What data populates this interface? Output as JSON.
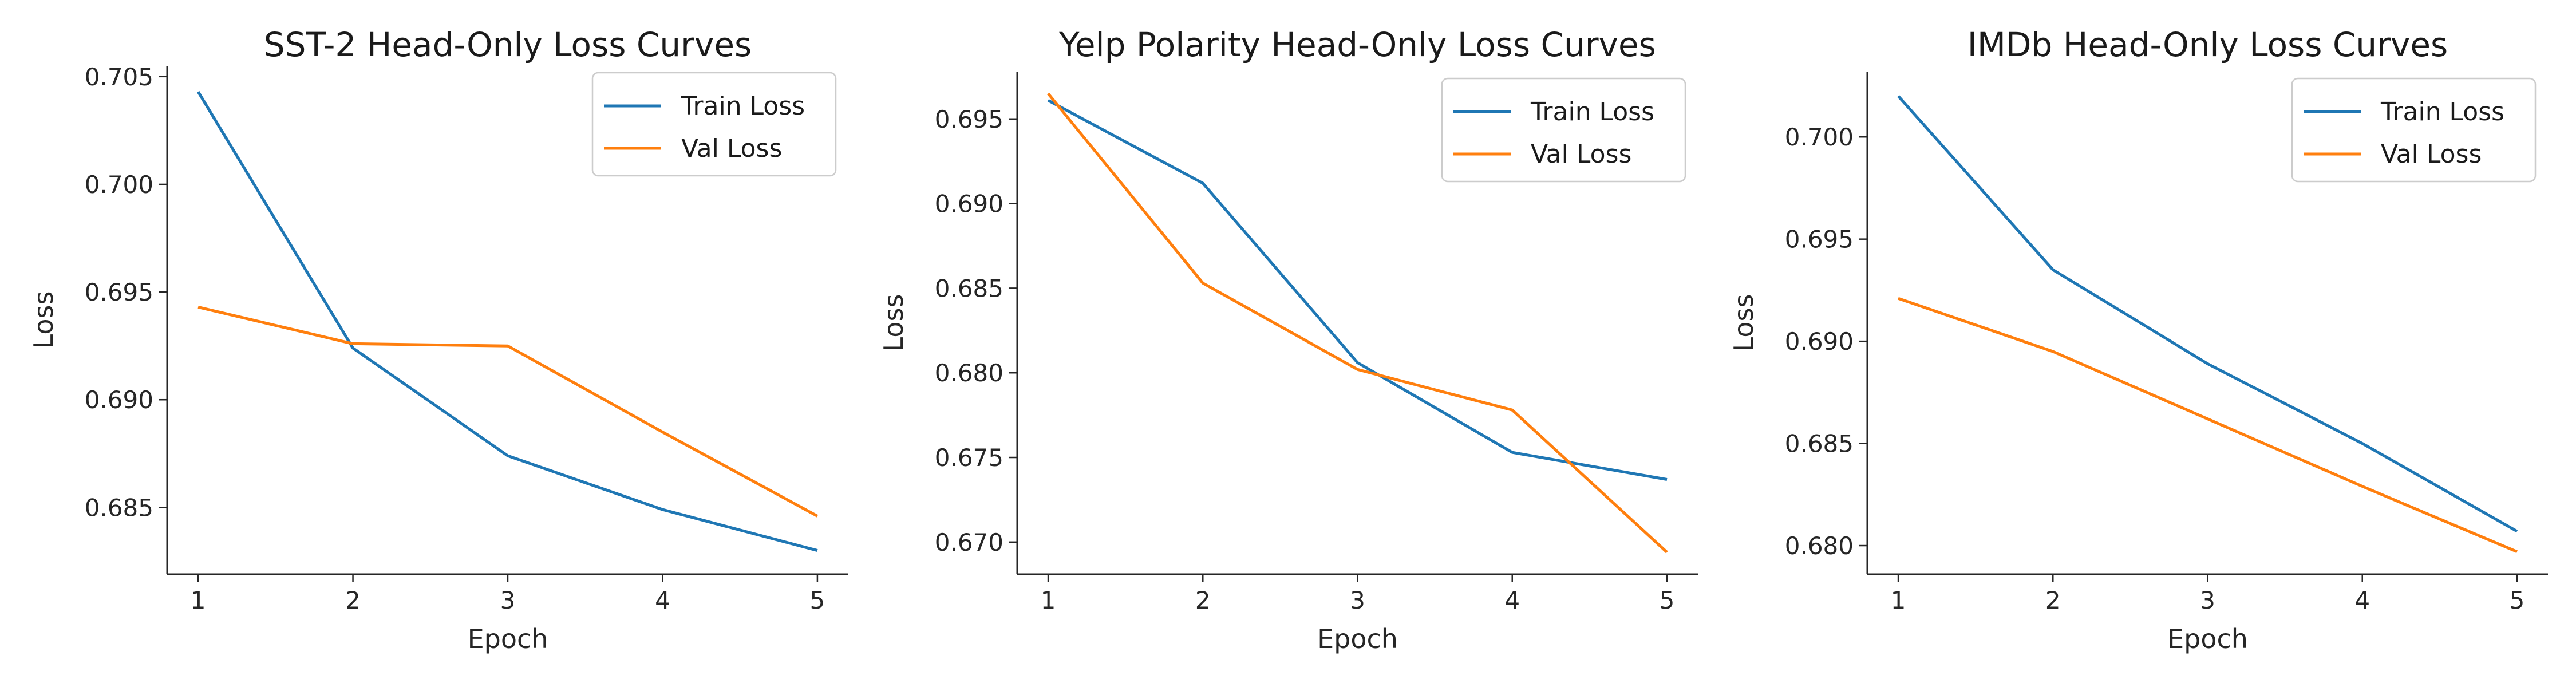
{
  "colors": {
    "train": "#1f77b4",
    "val": "#ff7f0e",
    "axis": "#262626"
  },
  "chart_data": [
    {
      "type": "line",
      "title": "SST-2 Head-Only Loss Curves",
      "xlabel": "Epoch",
      "ylabel": "Loss",
      "x": [
        1,
        2,
        3,
        4,
        5
      ],
      "xticks": [
        "1",
        "2",
        "3",
        "4",
        "5"
      ],
      "yticks": [
        "0.685",
        "0.690",
        "0.695",
        "0.700",
        "0.705"
      ],
      "ytick_values": [
        0.685,
        0.69,
        0.695,
        0.7,
        0.705
      ],
      "ylim": [
        0.6819,
        0.7055
      ],
      "grid": false,
      "legend_position": "top-right",
      "series": [
        {
          "name": "Train Loss",
          "color_key": "train",
          "values": [
            0.7043,
            0.6924,
            0.6874,
            0.6849,
            0.683
          ]
        },
        {
          "name": "Val Loss",
          "color_key": "val",
          "values": [
            0.6943,
            0.6926,
            0.6925,
            0.6885,
            0.6846
          ]
        }
      ]
    },
    {
      "type": "line",
      "title": "Yelp Polarity Head-Only Loss Curves",
      "xlabel": "Epoch",
      "ylabel": "Loss",
      "x": [
        1,
        2,
        3,
        4,
        5
      ],
      "xticks": [
        "1",
        "2",
        "3",
        "4",
        "5"
      ],
      "yticks": [
        "0.670",
        "0.675",
        "0.680",
        "0.685",
        "0.690",
        "0.695"
      ],
      "ytick_values": [
        0.67,
        0.675,
        0.68,
        0.685,
        0.69,
        0.695
      ],
      "ylim": [
        0.6681,
        0.6978
      ],
      "grid": false,
      "legend_position": "top-right",
      "series": [
        {
          "name": "Train Loss",
          "color_key": "train",
          "values": [
            0.6961,
            0.6912,
            0.6806,
            0.6753,
            0.6737
          ]
        },
        {
          "name": "Val Loss",
          "color_key": "val",
          "values": [
            0.6965,
            0.6853,
            0.6802,
            0.6778,
            0.6694
          ]
        }
      ]
    },
    {
      "type": "line",
      "title": "IMDb Head-Only Loss Curves",
      "xlabel": "Epoch",
      "ylabel": "Loss",
      "x": [
        1,
        2,
        3,
        4,
        5
      ],
      "xticks": [
        "1",
        "2",
        "3",
        "4",
        "5"
      ],
      "yticks": [
        "0.680",
        "0.685",
        "0.690",
        "0.695",
        "0.700"
      ],
      "ytick_values": [
        0.68,
        0.685,
        0.69,
        0.695,
        0.7
      ],
      "ylim": [
        0.6786,
        0.7032
      ],
      "grid": false,
      "legend_position": "top-right",
      "series": [
        {
          "name": "Train Loss",
          "color_key": "train",
          "values": [
            0.702,
            0.6935,
            0.6889,
            0.685,
            0.6807
          ]
        },
        {
          "name": "Val Loss",
          "color_key": "val",
          "values": [
            0.6921,
            0.6895,
            0.6862,
            0.6829,
            0.6797
          ]
        }
      ]
    }
  ]
}
